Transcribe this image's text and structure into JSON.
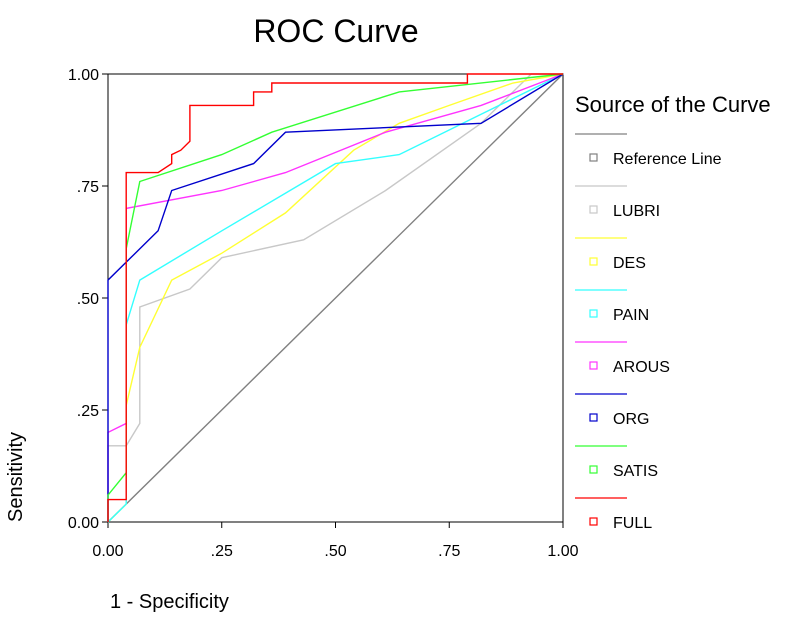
{
  "chart_data": {
    "type": "line",
    "title": "ROC Curve",
    "xlabel": "1 - Specificity",
    "ylabel": "Sensitivity",
    "xlim": [
      0,
      1
    ],
    "ylim": [
      0,
      1
    ],
    "x_ticks": [
      "0.00",
      ".25",
      ".50",
      ".75",
      "1.00"
    ],
    "y_ticks": [
      "0.00",
      ".25",
      ".50",
      ".75",
      "1.00"
    ],
    "legend_title": "Source of the Curve",
    "legend_position": "right",
    "grid": false,
    "series": [
      {
        "name": "Reference Line",
        "color": "#808080",
        "points": [
          [
            0,
            0
          ],
          [
            1,
            1
          ]
        ]
      },
      {
        "name": "LUBRI",
        "color": "#c8c8c8",
        "points": [
          [
            0,
            0
          ],
          [
            0,
            0.17
          ],
          [
            0.04,
            0.17
          ],
          [
            0.07,
            0.22
          ],
          [
            0.07,
            0.48
          ],
          [
            0.18,
            0.52
          ],
          [
            0.25,
            0.59
          ],
          [
            0.43,
            0.63
          ],
          [
            0.61,
            0.74
          ],
          [
            0.82,
            0.89
          ],
          [
            0.93,
            1.0
          ],
          [
            1,
            1
          ]
        ]
      },
      {
        "name": "DES",
        "color": "#ffff33",
        "points": [
          [
            0,
            0
          ],
          [
            0.04,
            0.04
          ],
          [
            0.04,
            0.26
          ],
          [
            0.07,
            0.39
          ],
          [
            0.14,
            0.54
          ],
          [
            0.25,
            0.6
          ],
          [
            0.39,
            0.69
          ],
          [
            0.54,
            0.83
          ],
          [
            0.64,
            0.89
          ],
          [
            0.75,
            0.93
          ],
          [
            0.89,
            0.98
          ],
          [
            1,
            1
          ]
        ]
      },
      {
        "name": "PAIN",
        "color": "#33ffff",
        "points": [
          [
            0,
            0
          ],
          [
            0.04,
            0.04
          ],
          [
            0.04,
            0.44
          ],
          [
            0.07,
            0.54
          ],
          [
            0.25,
            0.65
          ],
          [
            0.5,
            0.8
          ],
          [
            0.64,
            0.82
          ],
          [
            0.82,
            0.91
          ],
          [
            1,
            1
          ]
        ]
      },
      {
        "name": "AROUS",
        "color": "#ff33ff",
        "points": [
          [
            0,
            0
          ],
          [
            0,
            0.2
          ],
          [
            0.04,
            0.22
          ],
          [
            0.04,
            0.7
          ],
          [
            0.25,
            0.74
          ],
          [
            0.39,
            0.78
          ],
          [
            0.61,
            0.87
          ],
          [
            0.82,
            0.93
          ],
          [
            1,
            1
          ]
        ]
      },
      {
        "name": "ORG",
        "color": "#0000cc",
        "points": [
          [
            0,
            0
          ],
          [
            0,
            0.54
          ],
          [
            0.11,
            0.65
          ],
          [
            0.14,
            0.74
          ],
          [
            0.32,
            0.8
          ],
          [
            0.39,
            0.87
          ],
          [
            0.82,
            0.89
          ],
          [
            1,
            1
          ]
        ]
      },
      {
        "name": "SATIS",
        "color": "#33ff33",
        "points": [
          [
            0,
            0
          ],
          [
            0,
            0.06
          ],
          [
            0.04,
            0.11
          ],
          [
            0.04,
            0.61
          ],
          [
            0.07,
            0.76
          ],
          [
            0.25,
            0.82
          ],
          [
            0.36,
            0.87
          ],
          [
            0.64,
            0.96
          ],
          [
            1,
            1
          ]
        ]
      },
      {
        "name": "FULL",
        "color": "#ff0000",
        "points": [
          [
            0,
            0
          ],
          [
            0,
            0.05
          ],
          [
            0.04,
            0.05
          ],
          [
            0.04,
            0.78
          ],
          [
            0.11,
            0.78
          ],
          [
            0.14,
            0.8
          ],
          [
            0.14,
            0.82
          ],
          [
            0.16,
            0.83
          ],
          [
            0.18,
            0.85
          ],
          [
            0.18,
            0.93
          ],
          [
            0.32,
            0.93
          ],
          [
            0.32,
            0.96
          ],
          [
            0.36,
            0.96
          ],
          [
            0.36,
            0.98
          ],
          [
            0.79,
            0.98
          ],
          [
            0.79,
            1.0
          ],
          [
            1,
            1
          ]
        ]
      }
    ]
  }
}
